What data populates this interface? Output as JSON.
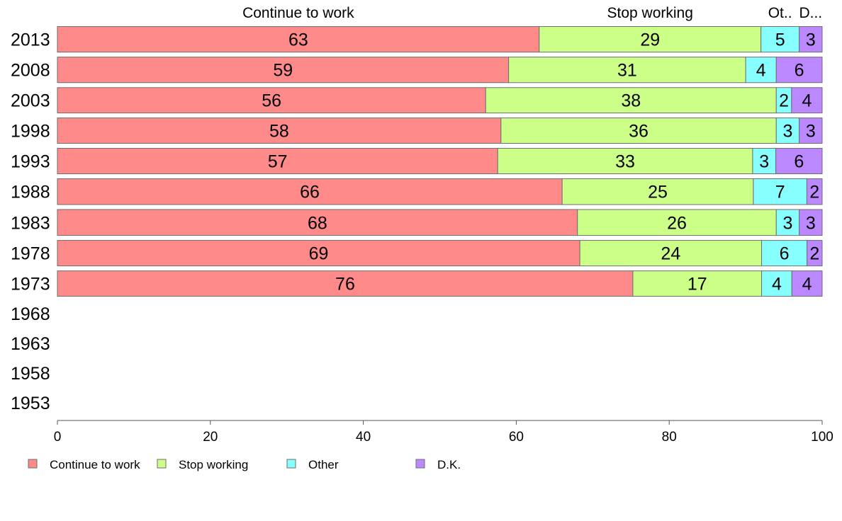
{
  "chart_data": {
    "type": "bar",
    "orientation": "horizontal",
    "stacked": true,
    "percent": true,
    "categories": [
      "2013",
      "2008",
      "2003",
      "1998",
      "1993",
      "1988",
      "1983",
      "1978",
      "1973",
      "1968",
      "1963",
      "1958",
      "1953"
    ],
    "category_weights": [
      1,
      1,
      0.75,
      0.8,
      0.9,
      1.3,
      1.45,
      0.95,
      0.75,
      0,
      0,
      0,
      0
    ],
    "series": [
      {
        "name": "Continue to work",
        "color": "#ff8a8a",
        "values": [
          63,
          59,
          56,
          58,
          57,
          66,
          68,
          69,
          76,
          null,
          null,
          null,
          null
        ]
      },
      {
        "name": "Stop working",
        "color": "#ccff88",
        "values": [
          29,
          31,
          38,
          36,
          33,
          25,
          26,
          24,
          17,
          null,
          null,
          null,
          null
        ]
      },
      {
        "name": "Other",
        "color": "#88ffff",
        "values": [
          5,
          4,
          2,
          3,
          3,
          7,
          3,
          6,
          4,
          null,
          null,
          null,
          null
        ]
      },
      {
        "name": "D.K.",
        "color": "#bb88ff",
        "values": [
          3,
          6,
          4,
          3,
          6,
          2,
          3,
          2,
          4,
          null,
          null,
          null,
          null
        ]
      }
    ],
    "top_labels": [
      "Continue to work",
      "Stop working",
      "Ot..",
      "D..."
    ],
    "x_ticks": [
      "0",
      "20",
      "40",
      "60",
      "80",
      "100"
    ],
    "xlim": [
      0,
      100
    ],
    "grid": false,
    "legend_position": "bottom-left"
  }
}
